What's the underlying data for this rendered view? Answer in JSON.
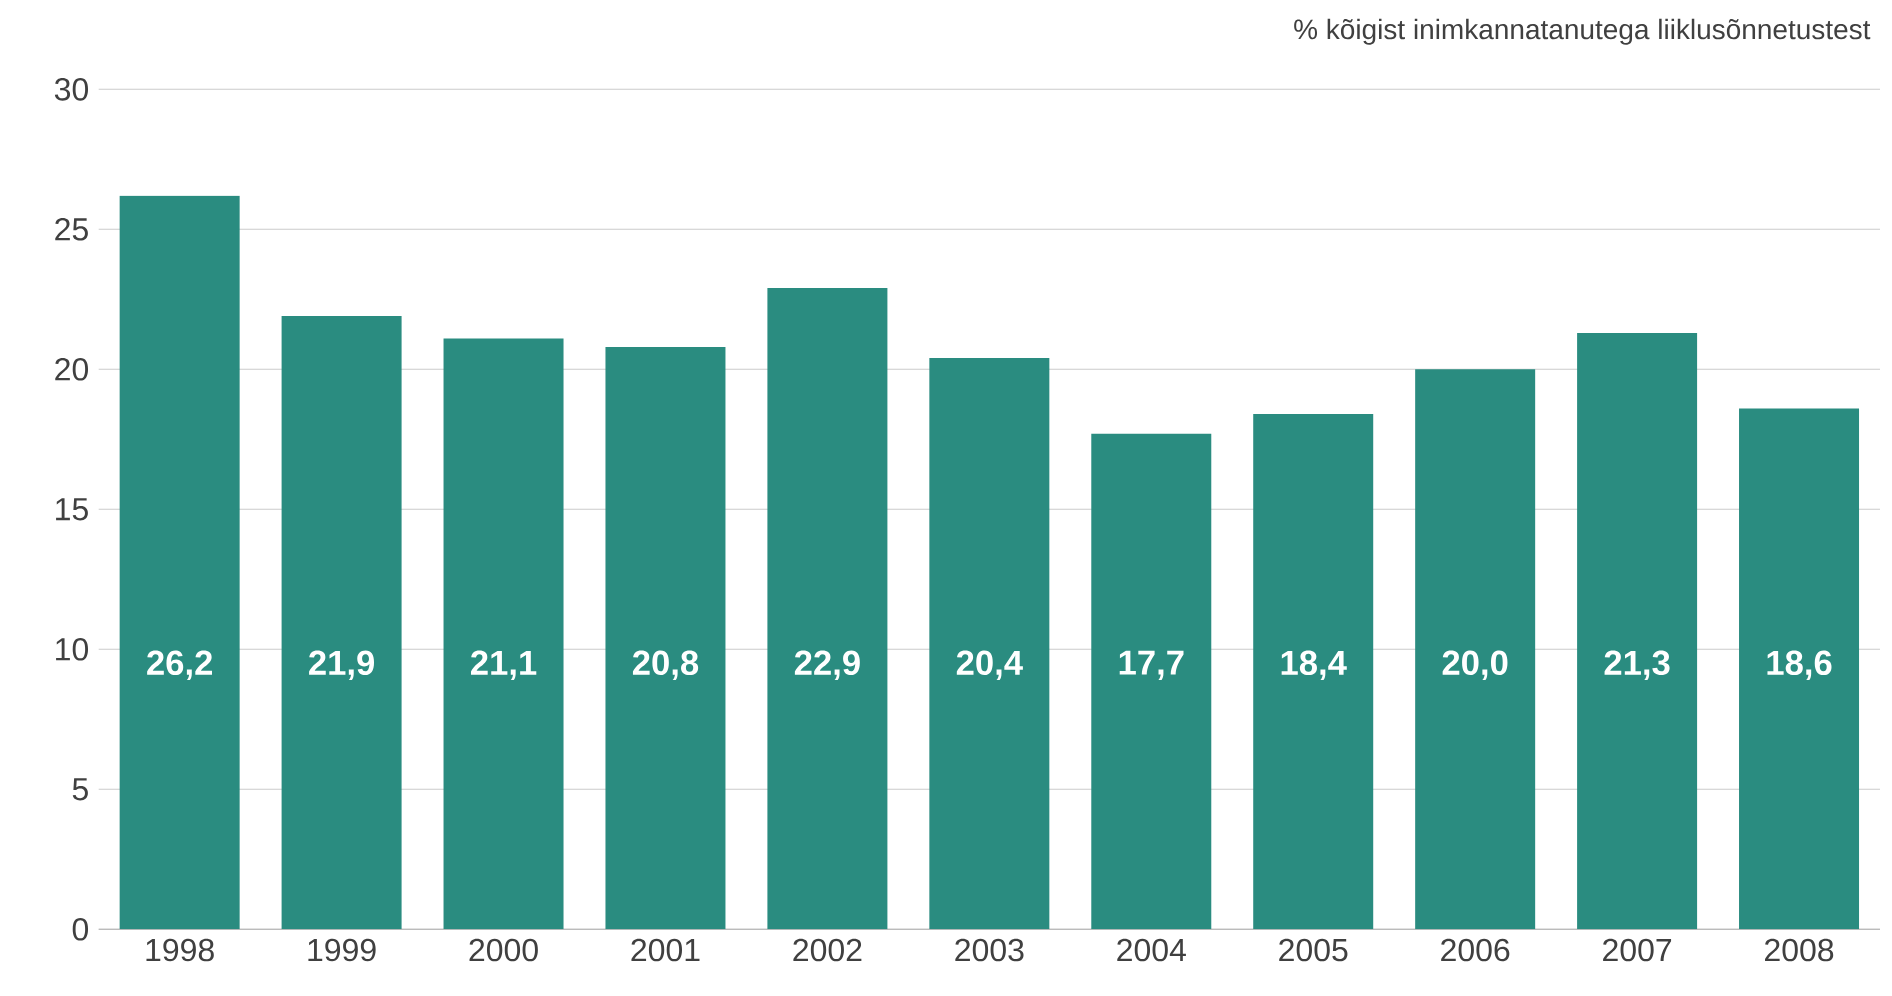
{
  "chart_data": {
    "type": "bar",
    "ylabel": "% kõigist inimkannatanutega liiklusõnnetustest",
    "categories": [
      "1998",
      "1999",
      "2000",
      "2001",
      "2002",
      "2003",
      "2004",
      "2005",
      "2006",
      "2007",
      "2008"
    ],
    "values": [
      26.2,
      21.9,
      21.1,
      20.8,
      22.9,
      20.4,
      17.7,
      18.4,
      20.0,
      21.3,
      18.6
    ],
    "value_labels": [
      "26,2",
      "21,9",
      "21,1",
      "20,8",
      "22,9",
      "20,4",
      "17,7",
      "18,4",
      "20,0",
      "21,3",
      "18,6"
    ],
    "color": "#2a8c80",
    "ylim": [
      0,
      30
    ],
    "yticks": [
      0,
      5,
      10,
      15,
      20,
      25,
      30
    ],
    "grid": "y"
  }
}
